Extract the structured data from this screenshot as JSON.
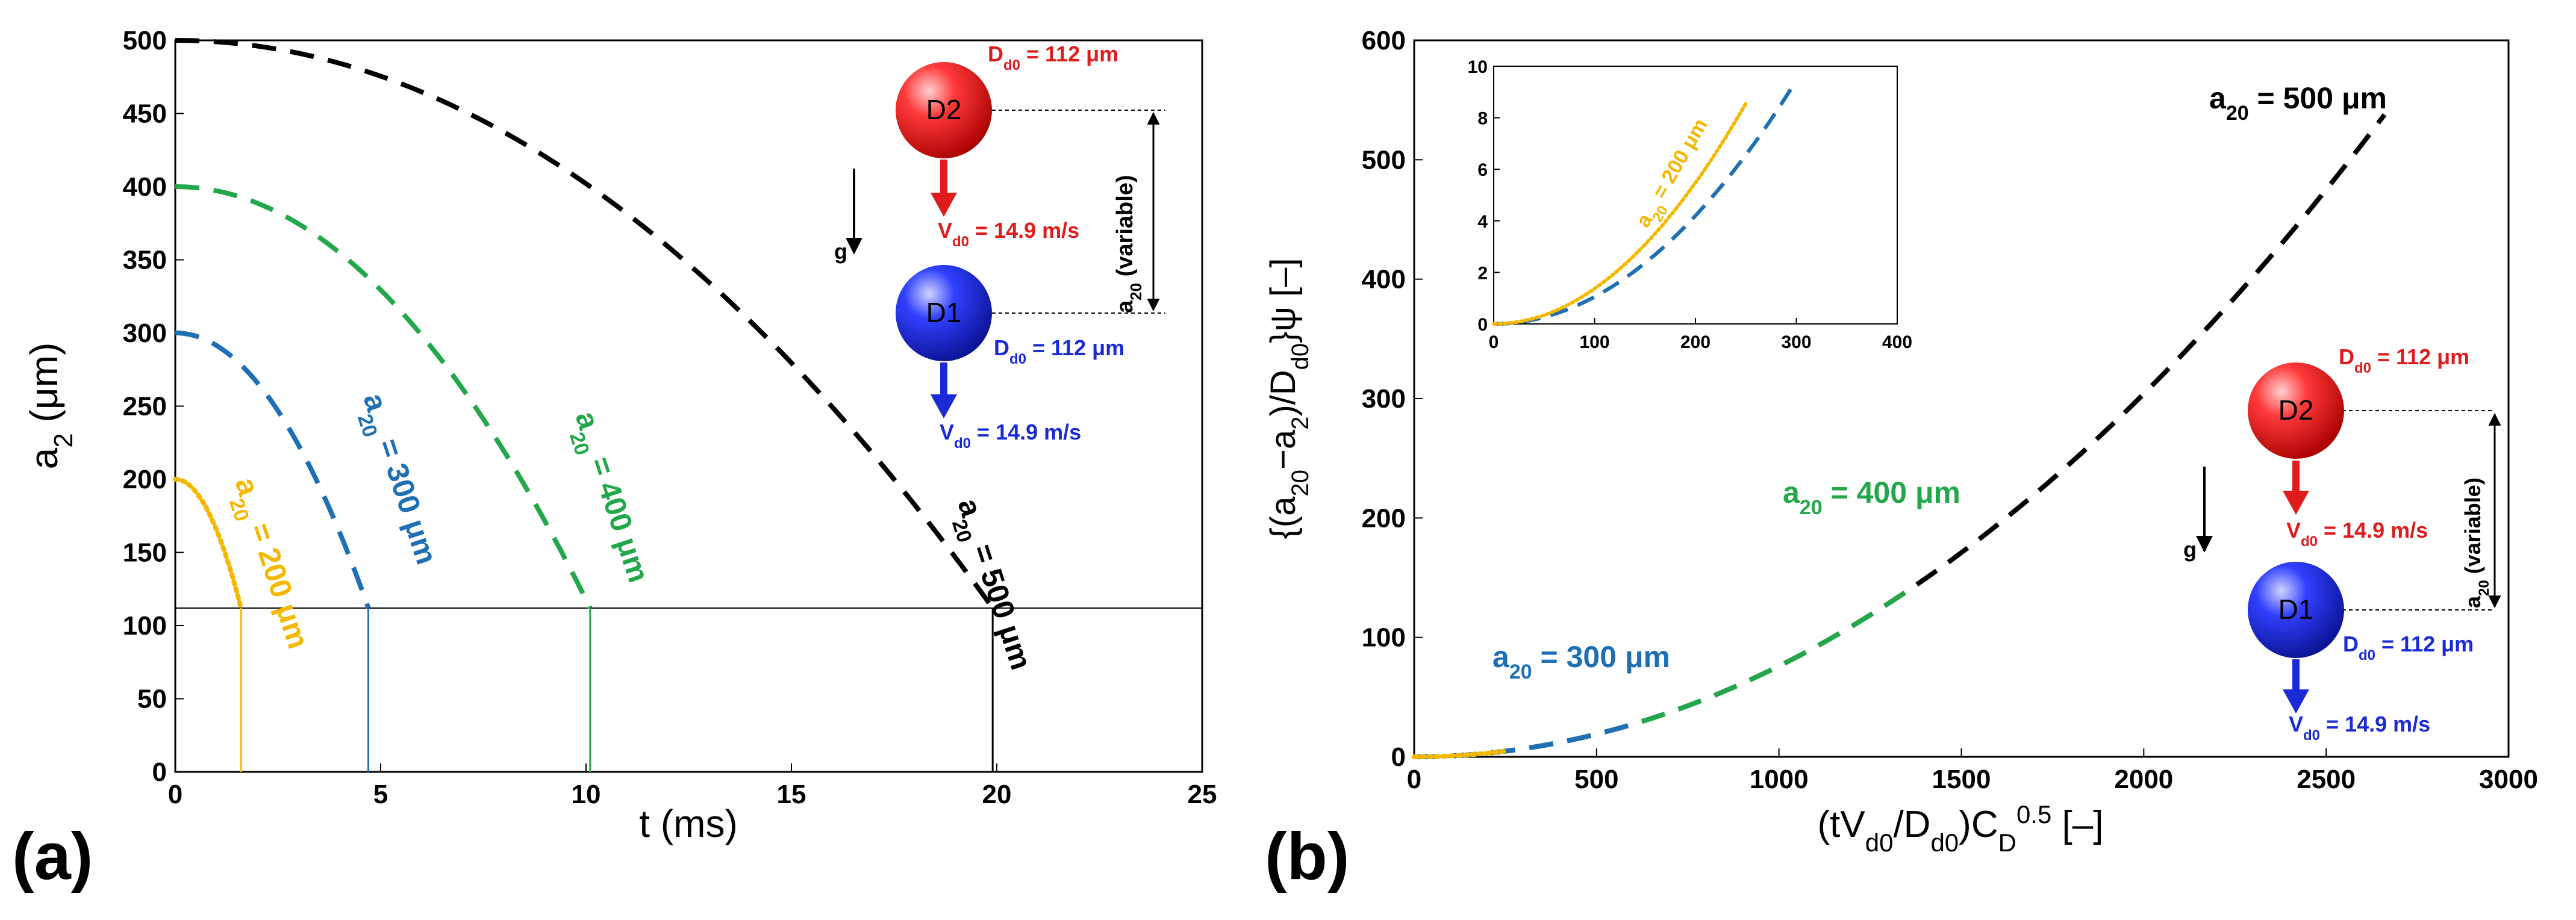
{
  "colors": {
    "a20_200": "#f5b800",
    "a20_300": "#1f6fb5",
    "a20_400": "#22a84a",
    "a20_500": "#000000",
    "d2": "#e01b1b",
    "d1": "#1a2bd6"
  },
  "panel_labels": {
    "a": "(a)",
    "b": "(b)"
  },
  "diagram": {
    "d2_label": "D2",
    "d1_label": "D1",
    "d2_diam": "D",
    "d2_diam_sub": "d0",
    "d2_diam_val": " = 112 μm",
    "d1_diam": "D",
    "d1_diam_sub": "d0",
    "d1_diam_val": " = 112 μm",
    "d2_vel": "V",
    "d2_vel_sub": "d0",
    "d2_vel_val": " = 14.9 m/s",
    "d1_vel": "V",
    "d1_vel_sub": "d0",
    "d1_vel_val": " = 14.9 m/s",
    "gravity": "g",
    "sep_a": "a",
    "sep_sub": "20",
    "sep_rest": " (variable)"
  },
  "chart_data": [
    {
      "type": "line",
      "panel": "(a)",
      "xlabel": "t (ms)",
      "ylabel": {
        "main": "a",
        "sub": "2",
        "rest": " (μm)"
      },
      "xlim": [
        0,
        25
      ],
      "ylim": [
        0,
        500
      ],
      "xticks": [
        "0",
        "5",
        "10",
        "15",
        "20",
        "25"
      ],
      "yticks": [
        "0",
        "50",
        "100",
        "150",
        "200",
        "250",
        "300",
        "350",
        "400",
        "450",
        "500"
      ],
      "reference_line_y": 112,
      "series": [
        {
          "name": "a20 = 200 μm",
          "label_main": "a",
          "label_sub": "20",
          "label_rest": " = 200 μm",
          "color": "#f5b800",
          "style": "dotted",
          "a20": 200,
          "t_end": 1.6
        },
        {
          "name": "a20 = 300 μm",
          "label_main": "a",
          "label_sub": "20",
          "label_rest": " = 300 μm",
          "color": "#1f6fb5",
          "style": "dashed",
          "a20": 300,
          "t_end": 4.7
        },
        {
          "name": "a20 = 400 μm",
          "label_main": "a",
          "label_sub": "20",
          "label_rest": " = 400 μm",
          "color": "#22a84a",
          "style": "dashed",
          "a20": 400,
          "t_end": 10.1
        },
        {
          "name": "a20 = 500 μm",
          "label_main": "a",
          "label_sub": "20",
          "label_rest": " = 500 μm",
          "color": "#000000",
          "style": "dashed",
          "a20": 500,
          "t_end": 19.9
        }
      ]
    },
    {
      "type": "line",
      "panel": "(b)",
      "xlabel": {
        "pre": "(tV",
        "sub1": "d0",
        "mid": "/D",
        "sub2": "d0",
        "mid2": ")C",
        "sub3": "D",
        "sup": "0.5",
        "rest": " [–]"
      },
      "ylabel": {
        "p1": "{(a",
        "s1": "20",
        "p2": "−a",
        "s2": "2",
        "p3": ")/D",
        "s3": "d0",
        "p4": "}ψ [–]"
      },
      "xlim": [
        0,
        3000
      ],
      "ylim": [
        0,
        600
      ],
      "xticks": [
        "0",
        "500",
        "1000",
        "1500",
        "2000",
        "2500",
        "3000"
      ],
      "yticks": [
        "0",
        "100",
        "200",
        "300",
        "400",
        "500",
        "600"
      ],
      "curve_coefficient": 7.6e-05,
      "series": [
        {
          "name": "a20 = 500 μm",
          "label_main": "a",
          "label_sub": "20",
          "label_rest": " = 500 μm",
          "color": "#000000",
          "style": "dashed",
          "x_end": 2660
        },
        {
          "name": "a20 = 400 μm",
          "label_main": "a",
          "label_sub": "20",
          "label_rest": " = 400 μm",
          "color": "#22a84a",
          "style": "dashed",
          "x_end": 1360
        },
        {
          "name": "a20 = 300 μm",
          "label_main": "a",
          "label_sub": "20",
          "label_rest": " = 300 μm",
          "color": "#1f6fb5",
          "style": "dashed",
          "x_end": 620
        },
        {
          "name": "a20 = 200 μm",
          "label_main": "a",
          "label_sub": "20",
          "label_rest": " = 200 μm",
          "color": "#f5b800",
          "style": "dotted",
          "x_end": 250
        }
      ],
      "inset": {
        "xlim": [
          0,
          400
        ],
        "ylim": [
          0,
          10
        ],
        "xticks": [
          "0",
          "100",
          "200",
          "300",
          "400"
        ],
        "yticks": [
          "0",
          "2",
          "4",
          "6",
          "8",
          "10"
        ],
        "coefficient": 0.000105,
        "series": [
          {
            "name": "a20 = 500 μm",
            "color": "#000000",
            "style": "dashed",
            "x_end": 300
          },
          {
            "name": "a20 = 400 μm",
            "color": "#22a84a",
            "style": "dashed",
            "x_end": 300
          },
          {
            "name": "a20 = 300 μm",
            "color": "#1f6fb5",
            "style": "dashed",
            "x_end": 300
          },
          {
            "name": "a20 = 200 μm",
            "color": "#f5b800",
            "style": "dotted",
            "x_end": 250,
            "offset": 0.5
          }
        ],
        "label": {
          "main": "a",
          "sub": "20",
          "rest": " = 200 μm",
          "color": "#f5b800"
        }
      }
    }
  ]
}
